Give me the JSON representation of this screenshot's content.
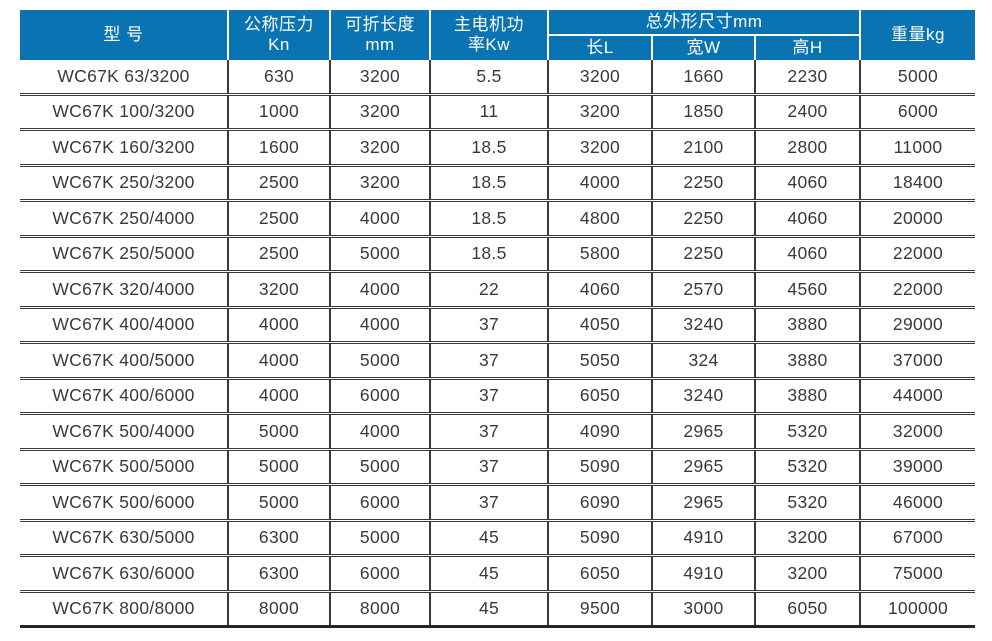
{
  "table": {
    "header": {
      "model": "型 号",
      "nominal_pressure": "公称压力\nKn",
      "fold_length": "可折长度\nmm",
      "motor_power": "主电机功\n率Kw",
      "dimensions_group": "总外形尺寸mm",
      "dim_length": "长L",
      "dim_width": "宽W",
      "dim_height": "高H",
      "weight": "重量kg"
    },
    "rows": [
      [
        "WC67K 63/3200",
        "630",
        "3200",
        "5.5",
        "3200",
        "1660",
        "2230",
        "5000"
      ],
      [
        "WC67K 100/3200",
        "1000",
        "3200",
        "11",
        "3200",
        "1850",
        "2400",
        "6000"
      ],
      [
        "WC67K 160/3200",
        "1600",
        "3200",
        "18.5",
        "3200",
        "2100",
        "2800",
        "11000"
      ],
      [
        "WC67K 250/3200",
        "2500",
        "3200",
        "18.5",
        "4000",
        "2250",
        "4060",
        "18400"
      ],
      [
        "WC67K 250/4000",
        "2500",
        "4000",
        "18.5",
        "4800",
        "2250",
        "4060",
        "20000"
      ],
      [
        "WC67K 250/5000",
        "2500",
        "5000",
        "18.5",
        "5800",
        "2250",
        "4060",
        "22000"
      ],
      [
        "WC67K 320/4000",
        "3200",
        "4000",
        "22",
        "4060",
        "2570",
        "4560",
        "22000"
      ],
      [
        "WC67K 400/4000",
        "4000",
        "4000",
        "37",
        "4050",
        "3240",
        "3880",
        "29000"
      ],
      [
        "WC67K 400/5000",
        "4000",
        "5000",
        "37",
        "5050",
        "324",
        "3880",
        "37000"
      ],
      [
        "WC67K 400/6000",
        "4000",
        "6000",
        "37",
        "6050",
        "3240",
        "3880",
        "44000"
      ],
      [
        "WC67K 500/4000",
        "5000",
        "4000",
        "37",
        "4090",
        "2965",
        "5320",
        "32000"
      ],
      [
        "WC67K 500/5000",
        "5000",
        "5000",
        "37",
        "5090",
        "2965",
        "5320",
        "39000"
      ],
      [
        "WC67K 500/6000",
        "5000",
        "6000",
        "37",
        "6090",
        "2965",
        "5320",
        "46000"
      ],
      [
        "WC67K 630/5000",
        "6300",
        "5000",
        "45",
        "5090",
        "4910",
        "3200",
        "67000"
      ],
      [
        "WC67K 630/6000",
        "6300",
        "6000",
        "45",
        "6050",
        "4910",
        "3200",
        "75000"
      ],
      [
        "WC67K 800/8000",
        "8000",
        "8000",
        "45",
        "9500",
        "3000",
        "6050",
        "100000"
      ]
    ]
  },
  "colors": {
    "header_bg": "#0a73b2",
    "header_text": "#ffffff",
    "body_text": "#3a3a3a",
    "grid_line": "#3a3a3a"
  }
}
